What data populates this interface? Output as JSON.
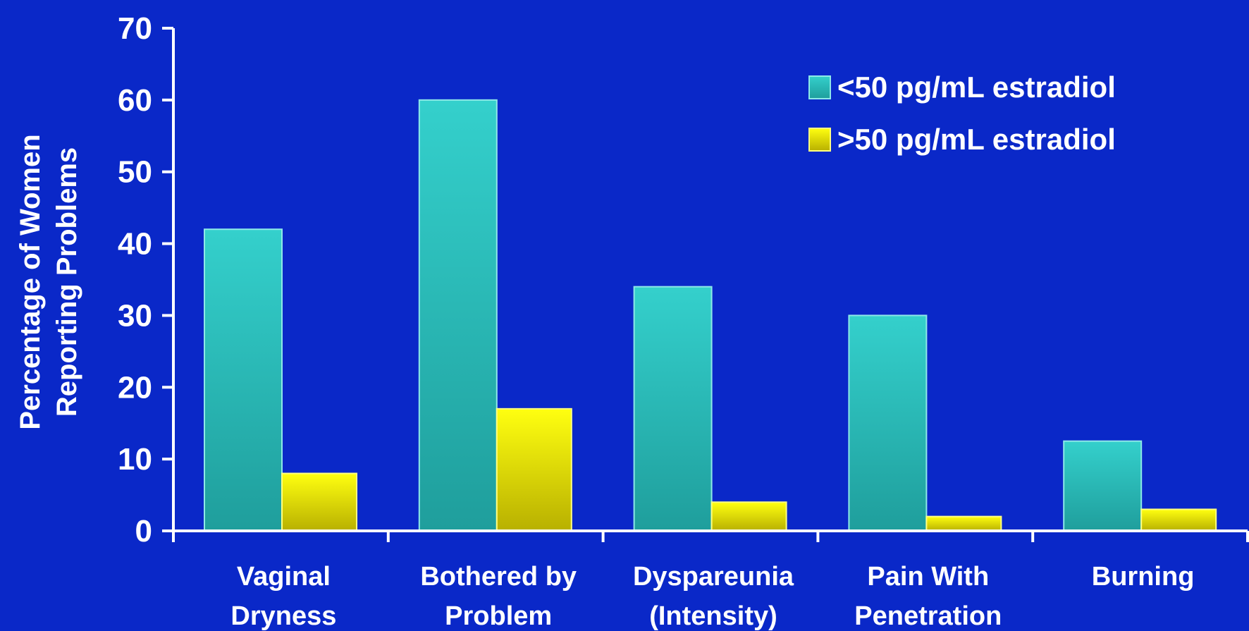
{
  "chart_data": {
    "type": "bar",
    "ylabel_lines": [
      "Percentage of Women",
      "Reporting Problems"
    ],
    "ylim": [
      0,
      70
    ],
    "yticks": [
      0,
      10,
      20,
      30,
      40,
      50,
      60,
      70
    ],
    "categories": [
      [
        "Vaginal",
        "Dryness"
      ],
      [
        "Bothered by",
        "Problem"
      ],
      [
        "Dyspareunia",
        "(Intensity)"
      ],
      [
        "Pain With",
        "Penetration"
      ],
      [
        "Burning"
      ]
    ],
    "series": [
      {
        "name": "<50 pg/mL estradiol",
        "values": [
          42,
          60,
          34,
          30,
          12.5
        ],
        "color": "#2ec8c8"
      },
      {
        "name": ">50 pg/mL estradiol",
        "values": [
          8,
          17,
          4,
          2,
          3
        ],
        "color": "#f0f000"
      }
    ],
    "grid": false,
    "legend_position": "top-right",
    "background": "#0a28c8",
    "axis_color": "#ffffff"
  }
}
